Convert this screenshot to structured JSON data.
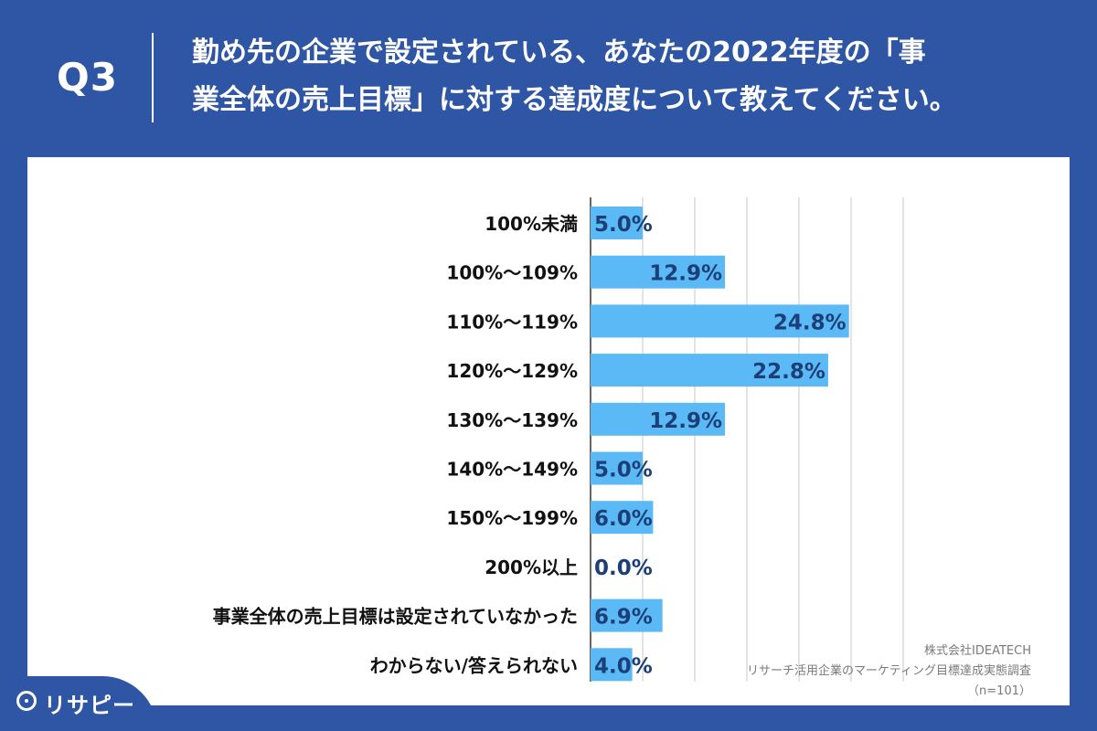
{
  "header": {
    "question_label": "Q3",
    "title_line1": "勤め先の企業で設定されている、あなたの2022年度の「事",
    "title_line2": "業全体の売上目標」に対する達成度について教えてください。"
  },
  "chart_data": {
    "type": "bar",
    "orientation": "horizontal",
    "categories": [
      "100%未満",
      "100%〜109%",
      "110%〜119%",
      "120%〜129%",
      "130%〜139%",
      "140%〜149%",
      "150%〜199%",
      "200%以上",
      "事業全体の売上目標は設定されていなかった",
      "わからない/答えられない"
    ],
    "values": [
      5.0,
      12.9,
      24.8,
      22.8,
      12.9,
      5.0,
      6.0,
      0.0,
      6.9,
      4.0
    ],
    "value_labels": [
      "5.0%",
      "12.9%",
      "24.8%",
      "22.8%",
      "12.9%",
      "5.0%",
      "6.0%",
      "0.0%",
      "6.9%",
      "4.0%"
    ],
    "xlim": [
      0,
      30
    ],
    "grid": true,
    "bar_color": "#5bbaf5",
    "label_color": "#1c3f78"
  },
  "source": {
    "line1": "株式会社IDEATECH",
    "line2": "リサーチ活用企業のマーケティング目標達成実態調査",
    "line3": "（n=101）"
  },
  "logo": {
    "text": "リサピー",
    "icon": "pin-icon"
  }
}
